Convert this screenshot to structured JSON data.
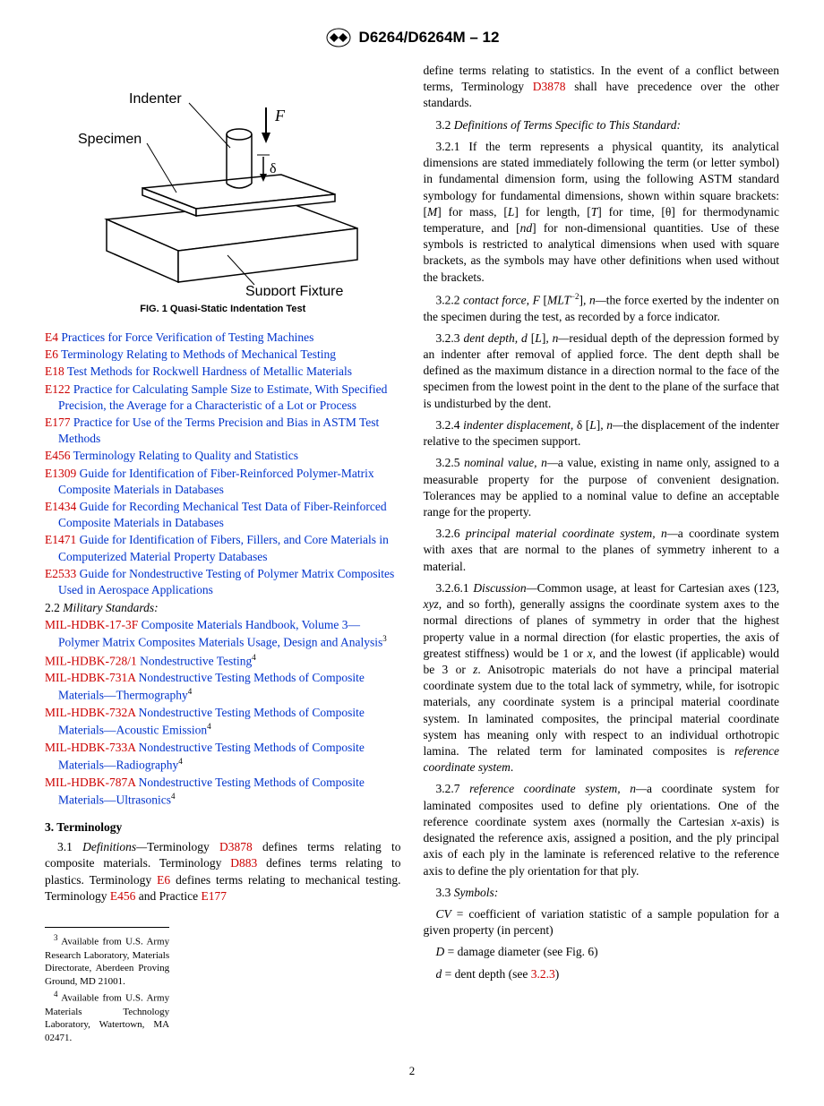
{
  "header": {
    "designation": "D6264/D6264M – 12"
  },
  "figure": {
    "labels": {
      "indenter": "Indenter",
      "specimen": "Specimen",
      "support": "Support Fixture",
      "force": "F",
      "delta": "δ"
    },
    "caption": "FIG. 1  Quasi-Static Indentation Test"
  },
  "references1": [
    {
      "code": "E4",
      "title": "Practices for Force Verification of Testing Machines"
    },
    {
      "code": "E6",
      "title": "Terminology Relating to Methods of Mechanical Testing"
    },
    {
      "code": "E18",
      "title": "Test Methods for Rockwell Hardness of Metallic Materials"
    },
    {
      "code": "E122",
      "title": "Practice for Calculating Sample Size to Estimate, With Specified Precision, the Average for a Characteristic of a Lot or Process"
    },
    {
      "code": "E177",
      "title": "Practice for Use of the Terms Precision and Bias in ASTM Test Methods"
    },
    {
      "code": "E456",
      "title": "Terminology Relating to Quality and Statistics"
    },
    {
      "code": "E1309",
      "title": "Guide for Identification of Fiber-Reinforced Polymer-Matrix Composite Materials in Databases"
    },
    {
      "code": "E1434",
      "title": "Guide for Recording Mechanical Test Data of Fiber-Reinforced Composite Materials in Databases"
    },
    {
      "code": "E1471",
      "title": "Guide for Identification of Fibers, Fillers, and Core Materials in Computerized Material Property Databases"
    },
    {
      "code": "E2533",
      "title": "Guide for Nondestructive Testing of Polymer Matrix Composites Used in Aerospace Applications"
    }
  ],
  "military_heading": "2.2 Military Standards:",
  "references2": [
    {
      "code": "MIL-HDBK-17-3F",
      "title": "Composite Materials Handbook, Volume 3—Polymer Matrix Composites Materials Usage, Design and Analysis",
      "fn": "3"
    },
    {
      "code": "MIL-HDBK-728/1",
      "title": "Nondestructive Testing",
      "fn": "4"
    },
    {
      "code": "MIL-HDBK-731A",
      "title": "Nondestructive Testing Methods of Composite Materials—Thermography",
      "fn": "4"
    },
    {
      "code": "MIL-HDBK-732A",
      "title": "Nondestructive Testing Methods of Composite Materials—Acoustic Emission",
      "fn": "4"
    },
    {
      "code": "MIL-HDBK-733A",
      "title": "Nondestructive Testing Methods of Composite Materials—Radiography",
      "fn": "4"
    },
    {
      "code": "MIL-HDBK-787A",
      "title": "Nondestructive Testing Methods of Composite Materials—Ultrasonics",
      "fn": "4"
    }
  ],
  "section3": {
    "heading": "3. Terminology",
    "p31_pre": "3.1 ",
    "p31_def": "Definitions—",
    "p31_t1": "Terminology ",
    "p31_l1": "D3878",
    "p31_t2": " defines terms relating to composite materials. Terminology ",
    "p31_l2": "D883",
    "p31_t3": " defines terms relating to plastics. Terminology ",
    "p31_l3": "E6",
    "p31_t4": " defines terms relating to mechanical testing. Terminology ",
    "p31_l4": "E456",
    "p31_t5": " and Practice ",
    "p31_l5": "E177"
  },
  "col2": {
    "p0_t1": "define terms relating to statistics. In the event of a conflict between terms, Terminology ",
    "p0_l1": "D3878",
    "p0_t2": " shall have precedence over the other standards.",
    "p32": "3.2 Definitions of Terms Specific to This Standard:",
    "p321": "3.2.1 If the term represents a physical quantity, its analytical dimensions are stated immediately following the term (or letter symbol) in fundamental dimension form, using the following ASTM standard symbology for fundamental dimensions, shown within square brackets: [M] for mass, [L] for length, [T] for time, [θ] for thermodynamic temperature, and [nd] for non-dimensional quantities. Use of these symbols is restricted to analytical dimensions when used with square brackets, as the symbols may have other definitions when used without the brackets.",
    "p322_n": "3.2.2 ",
    "p322_t": "contact force, F ",
    "p322_d": "[MLT",
    "p322_e": "−2",
    "p322_r": "], n—",
    "p322_b": "the force exerted by the indenter on the specimen during the test, as recorded by a force indicator.",
    "p323_n": "3.2.3 ",
    "p323_t": "dent depth, d ",
    "p323_d": "[L], n—",
    "p323_b": "residual depth of the depression formed by an indenter after removal of applied force. The dent depth shall be defined as the maximum distance in a direction normal to the face of the specimen from the lowest point in the dent to the plane of the surface that is undisturbed by the dent.",
    "p324_n": "3.2.4 ",
    "p324_t": "indenter displacement, ",
    "p324_s": "δ ",
    "p324_d": "[L], n—",
    "p324_b": "the displacement of the indenter relative to the specimen support.",
    "p325_n": "3.2.5 ",
    "p325_t": "nominal value, n—",
    "p325_b": "a value, existing in name only, assigned to a measurable property for the purpose of convenient designation. Tolerances may be applied to a nominal value to define an acceptable range for the property.",
    "p326_n": "3.2.6 ",
    "p326_t": "principal material coordinate system, n—",
    "p326_b": "a coordinate system with axes that are normal to the planes of symmetry inherent to a material.",
    "p3261_n": "3.2.6.1 ",
    "p3261_t": "Discussion—",
    "p3261_b1": "Common usage, at least for Cartesian axes (123, ",
    "p3261_i1": "xyz",
    "p3261_b2": ", and so forth), generally assigns the coordinate system axes to the normal directions of planes of symmetry in order that the highest property value in a normal direction (for elastic properties, the axis of greatest stiffness) would be 1 or ",
    "p3261_i2": "x",
    "p3261_b3": ", and the lowest (if applicable) would be 3 or ",
    "p3261_i3": "z",
    "p3261_b4": ". Anisotropic materials do not have a principal material coordinate system due to the total lack of symmetry, while, for isotropic materials, any coordinate system is a principal material coordinate system. In laminated composites, the principal material coordinate system has meaning only with respect to an individual orthotropic lamina. The related term for laminated composites is ",
    "p3261_i4": "reference coordinate system",
    "p3261_b5": ".",
    "p327_n": "3.2.7 ",
    "p327_t": "reference coordinate system, n—",
    "p327_b1": "a coordinate system for laminated composites used to define ply orientations. One of the reference coordinate system axes (normally the Cartesian ",
    "p327_i1": "x",
    "p327_b2": "-axis) is designated the reference axis, assigned a position, and the ply principal axis of each ply in the laminate is referenced relative to the reference axis to define the ply orientation for that ply.",
    "p33": "3.3 Symbols:",
    "sym1_v": "CV",
    "sym1_b": " = coefficient of variation statistic of a sample population for a given property (in percent)",
    "sym2_v": "D",
    "sym2_b": " = damage diameter (see Fig. 6)",
    "sym3_v": "d",
    "sym3_b": " = dent depth (see ",
    "sym3_l": "3.2.3",
    "sym3_e": ")"
  },
  "footnotes": {
    "f3": "Available from U.S. Army Research Laboratory, Materials Directorate, Aberdeen Proving Ground, MD 21001.",
    "f4": "Available from U.S. Army Materials Technology Laboratory, Watertown, MA 02471."
  },
  "page_number": "2"
}
